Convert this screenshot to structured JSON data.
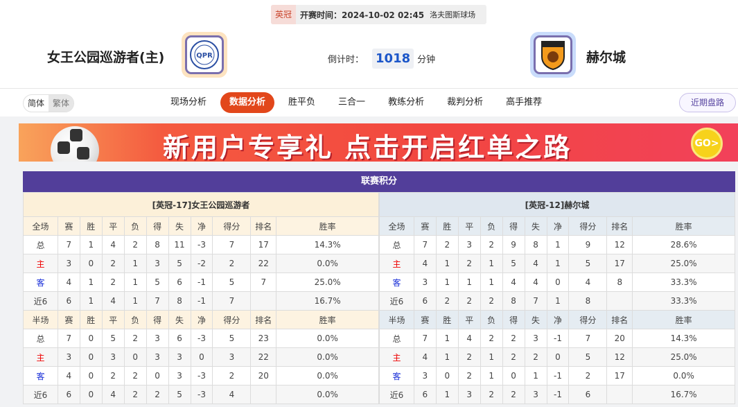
{
  "match": {
    "league": "英冠",
    "time": "开赛时间：2024-10-02 02:45",
    "venue": "洛夫图斯球场"
  },
  "home": {
    "name": "女王公园巡游者(主)",
    "logo_text": "QPR"
  },
  "away": {
    "name": "赫尔城",
    "logo_text": "HULL CITY"
  },
  "countdown": {
    "label": "倒计时：",
    "value": "1018",
    "unit": "分钟"
  },
  "lang": [
    "简体",
    "繁体"
  ],
  "tabs": [
    "现场分析",
    "数据分析",
    "胜平负",
    "三合一",
    "教练分析",
    "裁判分析",
    "高手推荐"
  ],
  "active_tab": "数据分析",
  "recent_button": "近期盘路",
  "banner": {
    "text": "新用户专享礼  点击开启红单之路",
    "go": "GO>"
  },
  "colors": {
    "accent": "#e2471b",
    "header": "#523e9a"
  },
  "standings": {
    "title": "联赛积分",
    "columns_full": [
      "全场",
      "赛",
      "胜",
      "平",
      "负",
      "得",
      "失",
      "净",
      "得分",
      "排名",
      "胜率"
    ],
    "columns_half": [
      "半场",
      "赛",
      "胜",
      "平",
      "负",
      "得",
      "失",
      "净",
      "得分",
      "排名",
      "胜率"
    ],
    "home": {
      "team": "[英冠-17]女王公园巡游者",
      "full": [
        [
          "总",
          "7",
          "1",
          "4",
          "2",
          "8",
          "11",
          "-3",
          "7",
          "17",
          "14.3%"
        ],
        [
          "主",
          "3",
          "0",
          "2",
          "1",
          "3",
          "5",
          "-2",
          "2",
          "22",
          "0.0%"
        ],
        [
          "客",
          "4",
          "1",
          "2",
          "1",
          "5",
          "6",
          "-1",
          "5",
          "7",
          "25.0%"
        ],
        [
          "近6",
          "6",
          "1",
          "4",
          "1",
          "7",
          "8",
          "-1",
          "7",
          "",
          "16.7%"
        ]
      ],
      "half": [
        [
          "总",
          "7",
          "0",
          "5",
          "2",
          "3",
          "6",
          "-3",
          "5",
          "23",
          "0.0%"
        ],
        [
          "主",
          "3",
          "0",
          "3",
          "0",
          "3",
          "3",
          "0",
          "3",
          "22",
          "0.0%"
        ],
        [
          "客",
          "4",
          "0",
          "2",
          "2",
          "0",
          "3",
          "-3",
          "2",
          "20",
          "0.0%"
        ],
        [
          "近6",
          "6",
          "0",
          "4",
          "2",
          "2",
          "5",
          "-3",
          "4",
          "",
          "0.0%"
        ]
      ]
    },
    "away": {
      "team": "[英冠-12]赫尔城",
      "full": [
        [
          "总",
          "7",
          "2",
          "3",
          "2",
          "9",
          "8",
          "1",
          "9",
          "12",
          "28.6%"
        ],
        [
          "主",
          "4",
          "1",
          "2",
          "1",
          "5",
          "4",
          "1",
          "5",
          "17",
          "25.0%"
        ],
        [
          "客",
          "3",
          "1",
          "1",
          "1",
          "4",
          "4",
          "0",
          "4",
          "8",
          "33.3%"
        ],
        [
          "近6",
          "6",
          "2",
          "2",
          "2",
          "8",
          "7",
          "1",
          "8",
          "",
          "33.3%"
        ]
      ],
      "half": [
        [
          "总",
          "7",
          "1",
          "4",
          "2",
          "2",
          "3",
          "-1",
          "7",
          "20",
          "14.3%"
        ],
        [
          "主",
          "4",
          "1",
          "2",
          "1",
          "2",
          "2",
          "0",
          "5",
          "12",
          "25.0%"
        ],
        [
          "客",
          "3",
          "0",
          "2",
          "1",
          "0",
          "1",
          "-1",
          "2",
          "17",
          "0.0%"
        ],
        [
          "近6",
          "6",
          "1",
          "3",
          "2",
          "2",
          "3",
          "-1",
          "6",
          "",
          "16.7%"
        ]
      ]
    }
  }
}
